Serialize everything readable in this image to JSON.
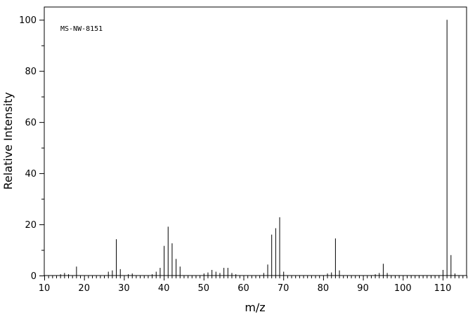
{
  "chart_data": {
    "type": "bar",
    "title": "",
    "annotation": "MS-NW-8151",
    "xlabel": "m/z",
    "ylabel": "Relative Intensity",
    "xlim": [
      10,
      116
    ],
    "ylim": [
      0,
      105
    ],
    "x_ticks": [
      10,
      20,
      30,
      40,
      50,
      60,
      70,
      80,
      90,
      100,
      110
    ],
    "y_ticks": [
      0,
      20,
      40,
      60,
      80,
      100
    ],
    "grid": false,
    "peaks": [
      {
        "x": 14,
        "y": 0.5
      },
      {
        "x": 15,
        "y": 1.0
      },
      {
        "x": 16,
        "y": 0.5
      },
      {
        "x": 18,
        "y": 3.5
      },
      {
        "x": 26,
        "y": 1.5
      },
      {
        "x": 27,
        "y": 2.0
      },
      {
        "x": 28,
        "y": 14.2
      },
      {
        "x": 29,
        "y": 2.5
      },
      {
        "x": 31,
        "y": 0.5
      },
      {
        "x": 32,
        "y": 0.8
      },
      {
        "x": 37,
        "y": 0.5
      },
      {
        "x": 38,
        "y": 1.5
      },
      {
        "x": 39,
        "y": 3.0
      },
      {
        "x": 40,
        "y": 11.6
      },
      {
        "x": 41,
        "y": 19.1
      },
      {
        "x": 42,
        "y": 12.6
      },
      {
        "x": 43,
        "y": 6.5
      },
      {
        "x": 44,
        "y": 3.5
      },
      {
        "x": 50,
        "y": 0.8
      },
      {
        "x": 51,
        "y": 1.2
      },
      {
        "x": 52,
        "y": 2.2
      },
      {
        "x": 53,
        "y": 1.5
      },
      {
        "x": 54,
        "y": 1.0
      },
      {
        "x": 55,
        "y": 3.0
      },
      {
        "x": 56,
        "y": 3.0
      },
      {
        "x": 57,
        "y": 1.0
      },
      {
        "x": 58,
        "y": 0.5
      },
      {
        "x": 65,
        "y": 1.0
      },
      {
        "x": 66,
        "y": 4.3
      },
      {
        "x": 67,
        "y": 16.0
      },
      {
        "x": 68,
        "y": 18.5
      },
      {
        "x": 69,
        "y": 22.8
      },
      {
        "x": 70,
        "y": 1.5
      },
      {
        "x": 81,
        "y": 0.8
      },
      {
        "x": 82,
        "y": 1.2
      },
      {
        "x": 83,
        "y": 14.5
      },
      {
        "x": 84,
        "y": 2.0
      },
      {
        "x": 93,
        "y": 0.5
      },
      {
        "x": 94,
        "y": 1.0
      },
      {
        "x": 95,
        "y": 4.6
      },
      {
        "x": 96,
        "y": 1.0
      },
      {
        "x": 110,
        "y": 2.2
      },
      {
        "x": 111,
        "y": 100
      },
      {
        "x": 112,
        "y": 8.0
      },
      {
        "x": 113,
        "y": 0.8
      }
    ]
  }
}
